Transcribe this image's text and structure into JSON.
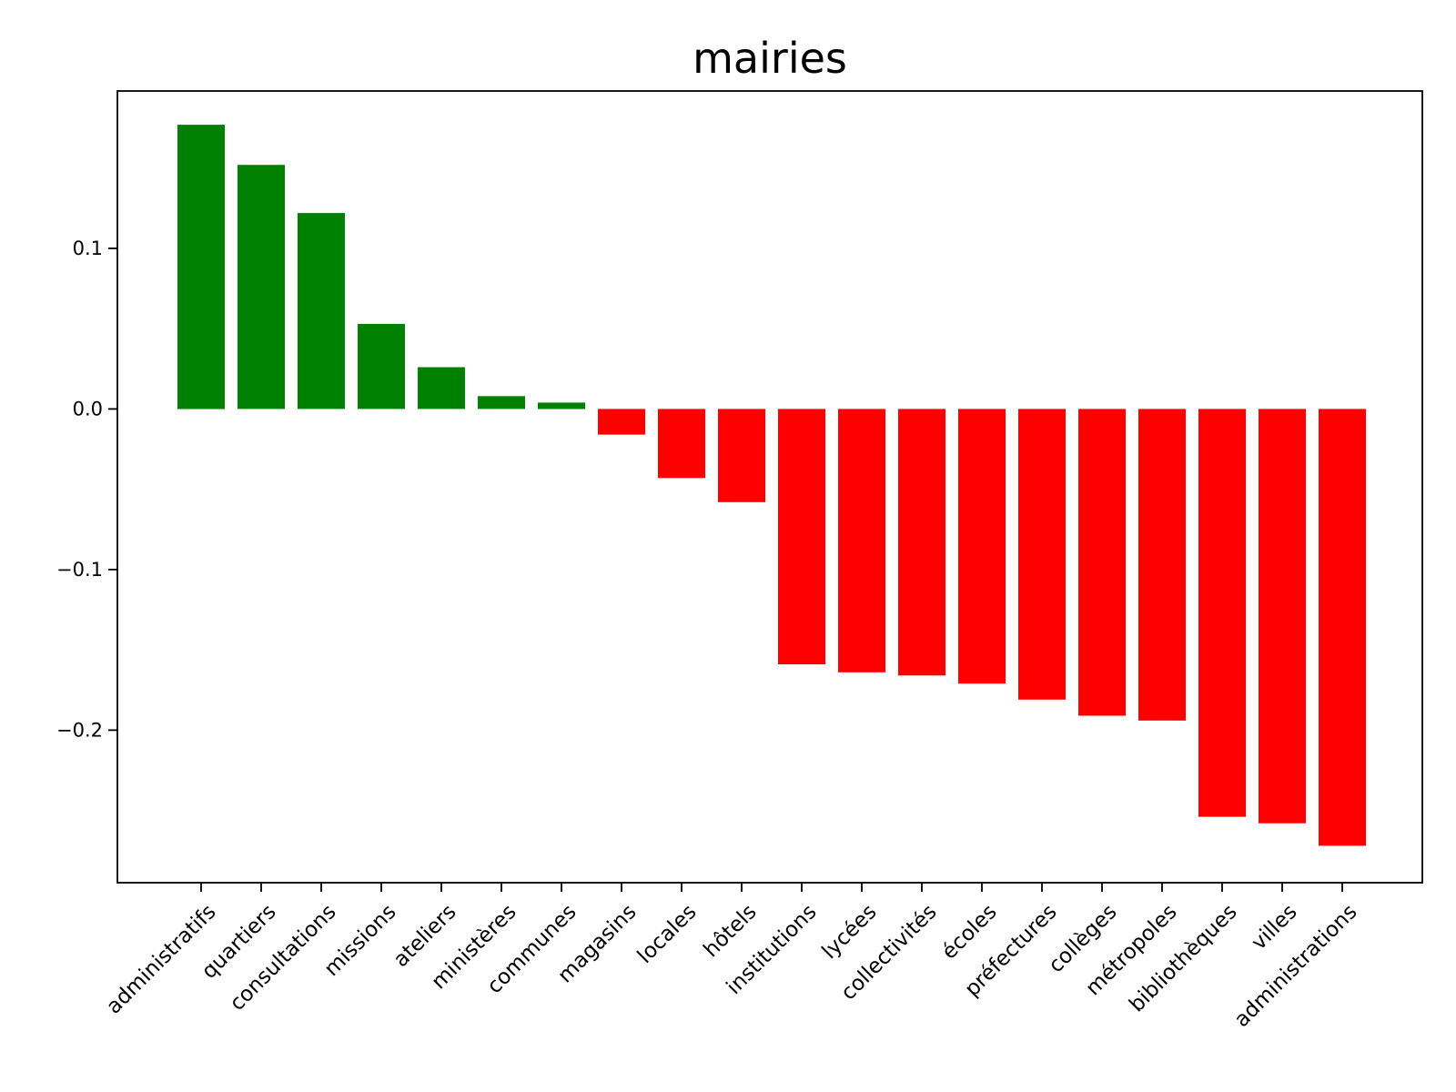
{
  "chart_data": {
    "type": "bar",
    "title": "mairies",
    "xlabel": "",
    "ylabel": "",
    "ylim": [
      -0.295,
      0.198
    ],
    "yticks": [
      0.1,
      0.0,
      -0.1,
      -0.2
    ],
    "ytick_labels": [
      "0.1",
      "0.0",
      "−0.1",
      "−0.2"
    ],
    "grid": false,
    "positive_color": "#008000",
    "negative_color": "#ff0000",
    "categories": [
      "administratifs",
      "quartiers",
      "consultations",
      "missions",
      "ateliers",
      "ministères",
      "communes",
      "magasins",
      "locales",
      "hôtels",
      "institutions",
      "lycées",
      "collectivités",
      "écoles",
      "préfectures",
      "collèges",
      "métropoles",
      "bibliothèques",
      "villes",
      "administrations"
    ],
    "values": [
      0.177,
      0.152,
      0.122,
      0.053,
      0.026,
      0.008,
      0.004,
      -0.016,
      -0.043,
      -0.058,
      -0.159,
      -0.164,
      -0.166,
      -0.171,
      -0.181,
      -0.191,
      -0.194,
      -0.254,
      -0.258,
      -0.272
    ]
  }
}
